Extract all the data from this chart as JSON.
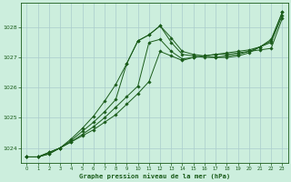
{
  "xlabel": "Graphe pression niveau de la mer (hPa)",
  "xlim": [
    -0.5,
    23.5
  ],
  "ylim": [
    1023.5,
    1028.8
  ],
  "yticks": [
    1024,
    1025,
    1026,
    1027,
    1028
  ],
  "xticks": [
    0,
    1,
    2,
    3,
    4,
    5,
    6,
    7,
    8,
    9,
    10,
    11,
    12,
    13,
    14,
    15,
    16,
    17,
    18,
    19,
    20,
    21,
    22,
    23
  ],
  "bg_color": "#cceedd",
  "grid_color": "#aacccc",
  "line_color": "#1a5c1a",
  "line1": {
    "x": [
      0,
      1,
      2,
      3,
      4,
      5,
      6,
      7,
      8,
      9,
      10,
      11,
      12,
      13,
      14,
      15,
      16,
      17,
      18,
      19,
      20,
      21,
      22,
      23
    ],
    "y": [
      1023.7,
      1023.7,
      1023.8,
      1024.0,
      1024.2,
      1024.4,
      1024.6,
      1024.85,
      1025.1,
      1025.45,
      1025.8,
      1026.2,
      1027.2,
      1027.05,
      1026.9,
      1027.0,
      1027.05,
      1027.1,
      1027.1,
      1027.15,
      1027.2,
      1027.25,
      1027.3,
      1028.3
    ]
  },
  "line2": {
    "x": [
      0,
      1,
      2,
      3,
      4,
      5,
      6,
      7,
      8,
      9,
      10,
      11,
      12,
      13,
      14,
      15,
      16,
      17,
      18,
      19,
      20,
      21,
      22,
      23
    ],
    "y": [
      1023.7,
      1023.7,
      1023.8,
      1024.0,
      1024.2,
      1024.45,
      1024.7,
      1025.0,
      1025.35,
      1025.7,
      1026.05,
      1027.5,
      1027.6,
      1027.2,
      1026.95,
      1027.0,
      1027.05,
      1027.1,
      1027.15,
      1027.2,
      1027.25,
      1027.35,
      1027.5,
      1028.4
    ]
  },
  "line3": {
    "x": [
      0,
      1,
      2,
      3,
      4,
      5,
      6,
      7,
      8,
      9,
      10,
      11,
      12,
      13,
      14,
      15,
      16,
      17,
      18,
      19,
      20,
      21,
      22,
      23
    ],
    "y": [
      1023.7,
      1023.7,
      1023.85,
      1024.0,
      1024.25,
      1024.55,
      1024.85,
      1025.2,
      1025.6,
      1026.8,
      1027.55,
      1027.75,
      1028.05,
      1027.5,
      1027.1,
      1027.05,
      1027.0,
      1027.0,
      1027.05,
      1027.1,
      1027.2,
      1027.35,
      1027.55,
      1028.5
    ]
  },
  "line4": {
    "x": [
      0,
      1,
      2,
      3,
      4,
      5,
      6,
      7,
      8,
      9,
      10,
      11,
      12,
      13,
      14,
      15,
      16,
      17,
      18,
      19,
      20,
      21,
      22,
      23
    ],
    "y": [
      1023.7,
      1023.7,
      1023.85,
      1024.0,
      1024.3,
      1024.65,
      1025.05,
      1025.55,
      1026.1,
      1026.8,
      1027.55,
      1027.75,
      1028.05,
      1027.65,
      1027.2,
      1027.1,
      1027.05,
      1027.0,
      1027.0,
      1027.05,
      1027.15,
      1027.35,
      1027.6,
      1028.5
    ]
  }
}
